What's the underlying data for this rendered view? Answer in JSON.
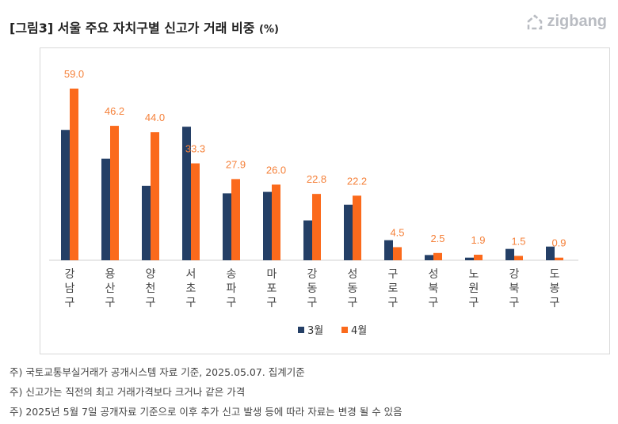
{
  "title": "[그림3] 서울 주요 자치구별 신고가 거래 비중",
  "title_unit": "(%)",
  "logo": "zigbang",
  "chart_data": {
    "type": "bar",
    "categories": [
      "강남구",
      "용산구",
      "양천구",
      "서초구",
      "송파구",
      "마포구",
      "강동구",
      "성동구",
      "구로구",
      "성북구",
      "노원구",
      "강북구",
      "도봉구"
    ],
    "series": [
      {
        "name": "3월",
        "color": "#243f66",
        "values": [
          44.8,
          34.9,
          25.6,
          45.9,
          23.0,
          23.5,
          13.7,
          19.1,
          6.9,
          1.8,
          0.9,
          3.9,
          4.7
        ]
      },
      {
        "name": "4월",
        "color": "#fb6a1c",
        "values": [
          59.0,
          46.2,
          44.0,
          33.3,
          27.9,
          26.0,
          22.8,
          22.2,
          4.5,
          2.5,
          1.9,
          1.5,
          0.9
        ],
        "labels": [
          "59.0",
          "46.2",
          "44.0",
          "33.3",
          "27.9",
          "26.0",
          "22.8",
          "22.2",
          "4.5",
          "2.5",
          "1.9",
          "1.5",
          "0.9"
        ]
      }
    ],
    "label_color": "#f5813a",
    "ylim": [
      0,
      60
    ],
    "grid": false,
    "legend": "bottom"
  },
  "notes": [
    "주) 국토교통부실거래가 공개시스템 자료 기준, 2025.05.07. 집계기준",
    "주) 신고가는 직전의 최고 거래가격보다 크거나 같은 가격",
    "주) 2025년 5월 7일 공개자료 기준으로 이후 추가 신고 발생 등에 따라 자료는 변경 될 수 있음"
  ]
}
